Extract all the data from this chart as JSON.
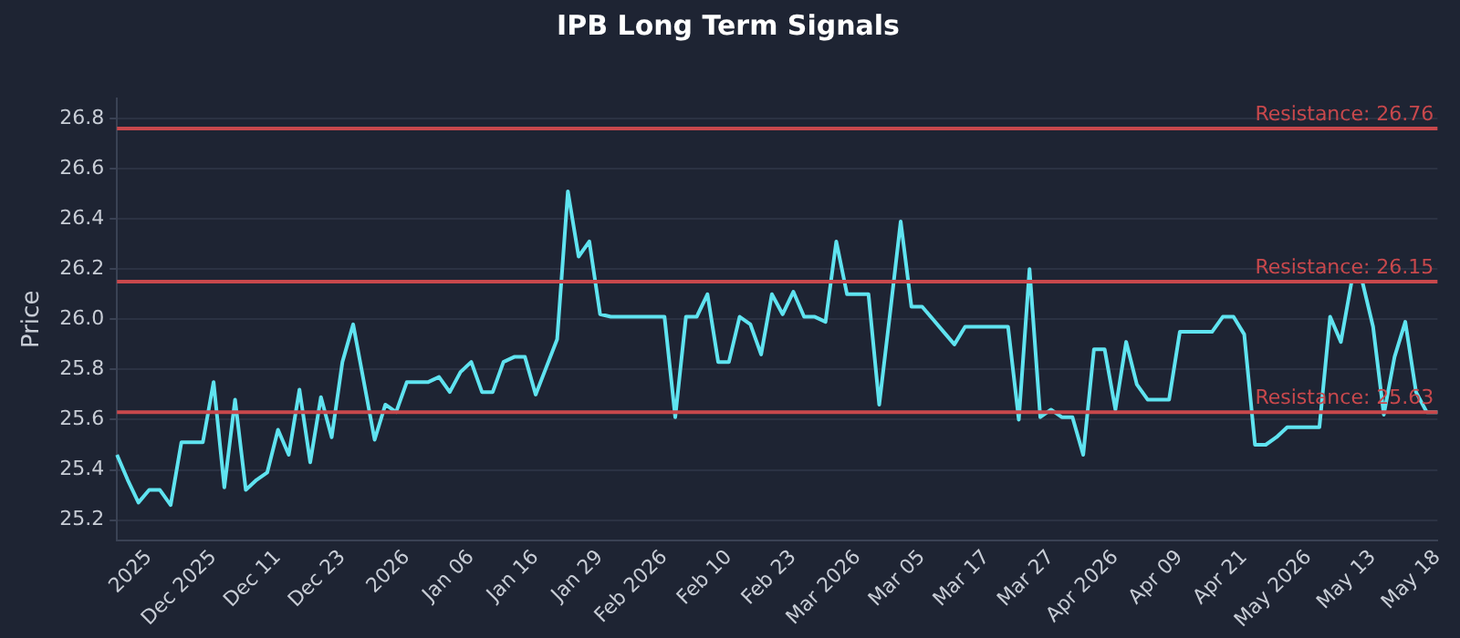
{
  "chart_data": {
    "type": "line",
    "title": "IPB Long Term Signals",
    "ylabel": "Price",
    "categories": [
      null,
      null,
      null,
      "2025",
      null,
      null,
      null,
      null,
      null,
      "Dec 2025",
      null,
      null,
      null,
      null,
      null,
      "Dec 11",
      null,
      null,
      null,
      null,
      null,
      "Dec 23",
      null,
      null,
      null,
      null,
      null,
      "2026",
      null,
      null,
      null,
      null,
      null,
      "Jan 06",
      null,
      null,
      null,
      null,
      null,
      "Jan 16",
      null,
      null,
      null,
      null,
      null,
      "Jan 29",
      null,
      null,
      null,
      null,
      null,
      "Feb 2026",
      null,
      null,
      null,
      null,
      null,
      "Feb 10",
      null,
      null,
      null,
      null,
      null,
      "Feb 23",
      null,
      null,
      null,
      null,
      null,
      "Mar 2026",
      null,
      null,
      null,
      null,
      null,
      "Mar 05",
      null,
      null,
      null,
      null,
      null,
      "Mar 17",
      null,
      null,
      null,
      null,
      null,
      "Mar 27",
      null,
      null,
      null,
      null,
      null,
      "Apr 2026",
      null,
      null,
      null,
      null,
      null,
      "Apr 09",
      null,
      null,
      null,
      null,
      null,
      "Apr 21",
      null,
      null,
      null,
      null,
      null,
      "May 2026",
      null,
      null,
      null,
      null,
      null,
      "May 13",
      null,
      null,
      null,
      null,
      null,
      "May 18"
    ],
    "series": [
      {
        "color": "#5fe3f0",
        "values": [
          25.46,
          25.36,
          25.27,
          25.32,
          25.32,
          25.26,
          25.51,
          25.51,
          25.51,
          25.75,
          25.33,
          25.68,
          25.32,
          25.36,
          25.39,
          25.56,
          25.46,
          25.72,
          25.43,
          25.69,
          25.53,
          25.83,
          25.98,
          25.75,
          25.52,
          25.66,
          25.63,
          25.75,
          25.75,
          25.75,
          25.77,
          25.71,
          25.79,
          25.83,
          25.71,
          25.71,
          25.83,
          25.85,
          25.85,
          25.7,
          25.81,
          25.92,
          26.51,
          26.25,
          26.31,
          26.02,
          26.01,
          26.01,
          26.01,
          26.01,
          26.01,
          26.01,
          25.61,
          26.01,
          26.01,
          26.1,
          25.83,
          25.83,
          26.01,
          25.98,
          25.86,
          26.1,
          26.02,
          26.11,
          26.01,
          26.01,
          25.99,
          26.31,
          26.1,
          26.1,
          26.1,
          25.66,
          26.02,
          26.39,
          26.05,
          26.05,
          26.0,
          25.95,
          25.9,
          25.97,
          25.97,
          25.97,
          25.97,
          25.97,
          25.6,
          26.2,
          25.61,
          25.64,
          25.61,
          25.61,
          25.46,
          25.88,
          25.88,
          25.64,
          25.91,
          25.74,
          25.68,
          25.68,
          25.68,
          25.95,
          25.95,
          25.95,
          25.95,
          26.01,
          26.01,
          25.94,
          25.5,
          25.5,
          25.53,
          25.57,
          25.57,
          25.57,
          25.57,
          26.01,
          25.91,
          26.15,
          26.15,
          25.97,
          25.62,
          25.85,
          25.99,
          25.71,
          25.63,
          25.63
        ]
      }
    ],
    "ylim": [
      25.12,
      26.88
    ],
    "yticks": [
      25.2,
      25.4,
      25.6,
      25.8,
      {
        "value": 26.0,
        "label": "26.0"
      },
      26.2,
      26.4,
      26.6,
      26.8
    ],
    "ref_lines": [
      {
        "axis": "y",
        "value": 26.76,
        "label": "Resistance: 26.76",
        "color": "#c8484c"
      },
      {
        "axis": "y",
        "value": 26.15,
        "label": "Resistance: 26.15",
        "color": "#c8484c"
      },
      {
        "axis": "y",
        "value": 25.63,
        "label": "Resistance: 25.63",
        "color": "#c8484c"
      }
    ],
    "grid": "y",
    "legend": false,
    "marker": "none",
    "line_style": "solid"
  }
}
